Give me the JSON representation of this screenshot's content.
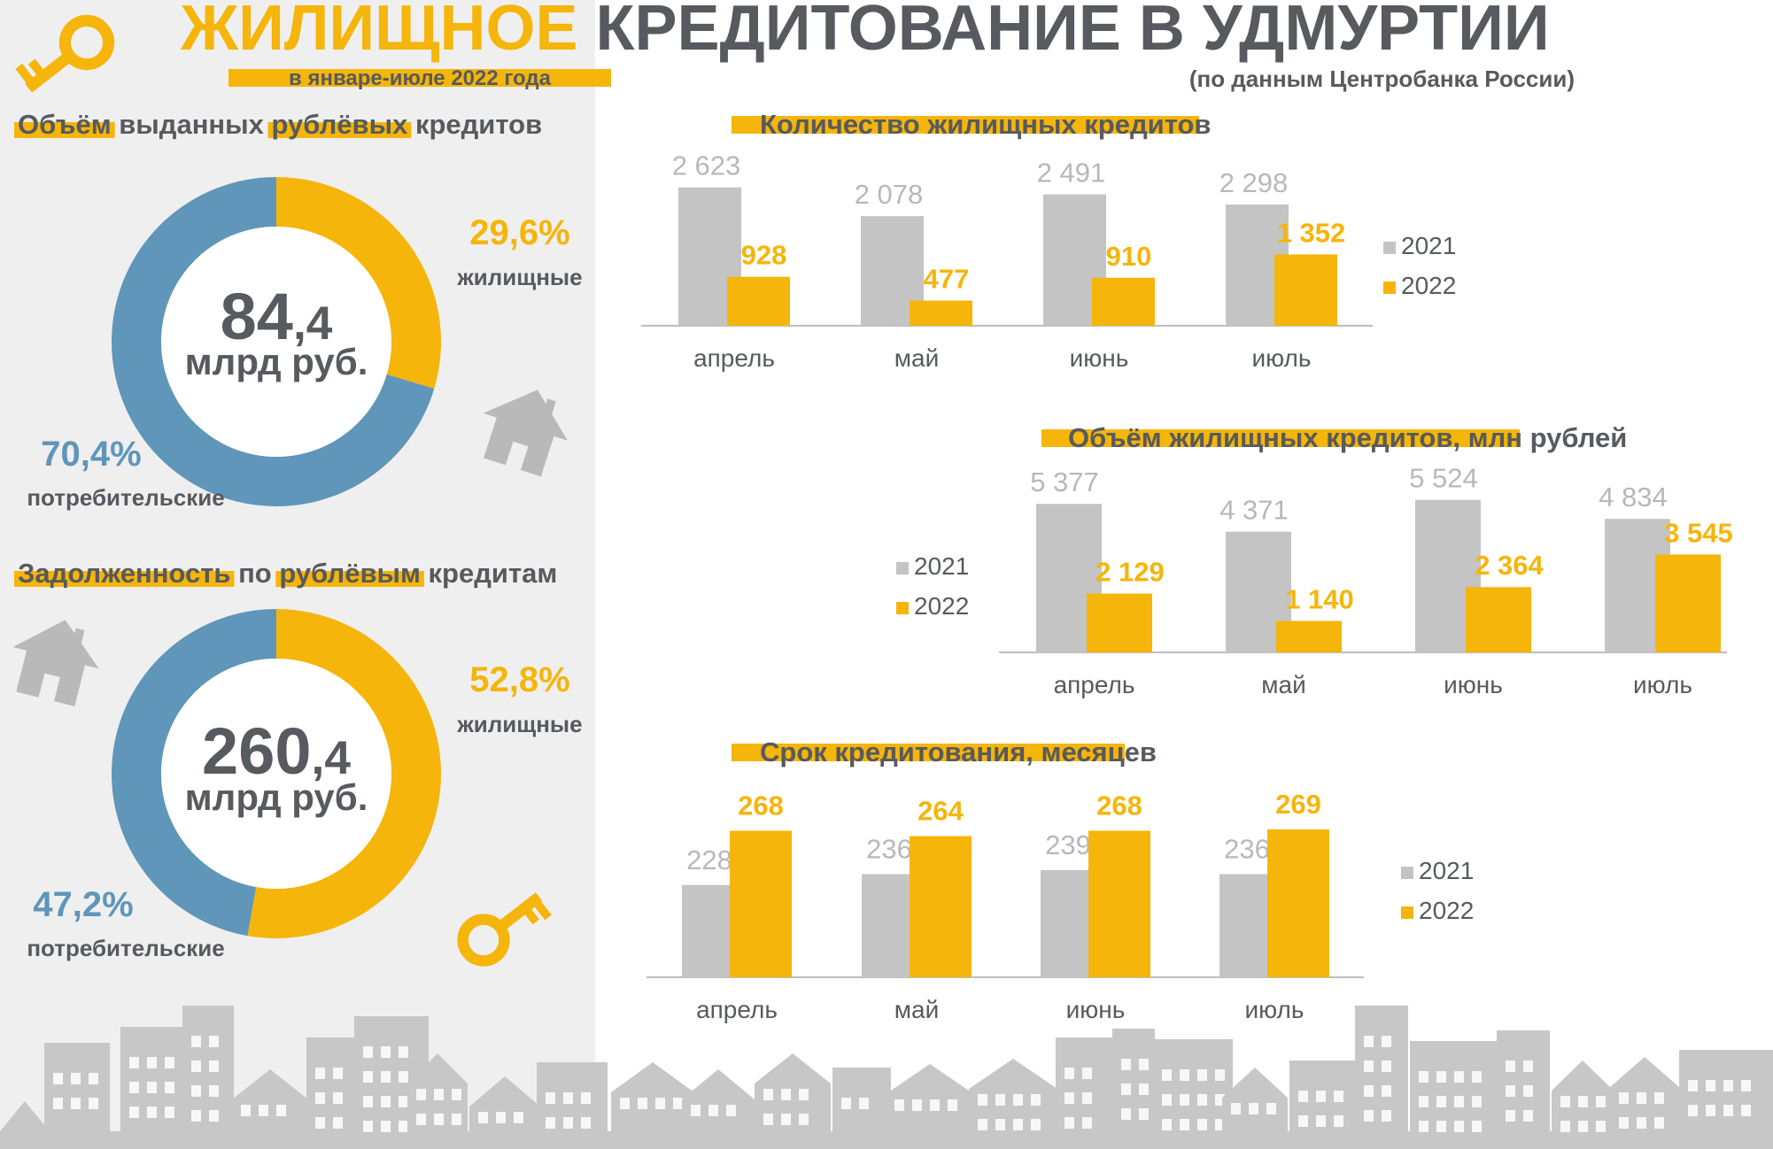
{
  "header": {
    "title_highlight": "ЖИЛИЩНОЕ",
    "title_rest": "КРЕДИТОВАНИЕ В УДМУРТИИ",
    "period": "в январе-июле 2022 года",
    "source": "(по данным Центробанка России)"
  },
  "colors": {
    "accent": "#f5b50a",
    "blue": "#5f96b9",
    "gray_bar": "#c4c4c4",
    "text_dark": "#575a5e",
    "panel": "#efefef",
    "icon_gray": "#b9b9b9",
    "skyline": "#c7c7c7"
  },
  "icons": [
    "key-icon",
    "house-icon",
    "key-icon",
    "house-icon",
    "city-skyline-icon"
  ],
  "volume_section": {
    "heading": [
      {
        "text": "Объём",
        "highlight": true
      },
      {
        "text": "выданных",
        "highlight": false
      },
      {
        "text": "рублёвых",
        "highlight": true
      },
      {
        "text": "кредитов",
        "highlight": false
      }
    ]
  },
  "debt_section": {
    "heading": [
      {
        "text": "Задолженность",
        "highlight": true
      },
      {
        "text": "по",
        "highlight": false
      },
      {
        "text": "рублёвым",
        "highlight": true
      },
      {
        "text": "кредитам",
        "highlight": false
      }
    ]
  },
  "chart_data": [
    {
      "id": "donut_volume",
      "type": "pie",
      "center_int": "84",
      "center_dec": ",4",
      "center_unit": "млрд руб.",
      "slices": [
        {
          "label": "жилищные",
          "pct_label": "29,6%",
          "value": 29.6,
          "color": "#f5b50a"
        },
        {
          "label": "потребительские",
          "pct_label": "70,4%",
          "value": 70.4,
          "color": "#5f96b9"
        }
      ]
    },
    {
      "id": "donut_debt",
      "type": "pie",
      "center_int": "260",
      "center_dec": ",4",
      "center_unit": "млрд руб.",
      "slices": [
        {
          "label": "жилищные",
          "pct_label": "52,8%",
          "value": 52.8,
          "color": "#f5b50a"
        },
        {
          "label": "потребительские",
          "pct_label": "47,2%",
          "value": 47.2,
          "color": "#5f96b9"
        }
      ]
    },
    {
      "id": "bar_count",
      "type": "bar",
      "title": "Количество жилищных кредитов",
      "categories": [
        "апрель",
        "май",
        "июнь",
        "июль"
      ],
      "series": [
        {
          "name": "2021",
          "values": [
            2623,
            2078,
            2491,
            2298
          ],
          "labels": [
            "2 623",
            "2 078",
            "2 491",
            "2 298"
          ],
          "color": "#c4c4c4"
        },
        {
          "name": "2022",
          "values": [
            928,
            477,
            910,
            1352
          ],
          "labels": [
            "928",
            "477",
            "910",
            "1 352"
          ],
          "color": "#f5b50a"
        }
      ],
      "legend": "right"
    },
    {
      "id": "bar_volume",
      "type": "bar",
      "title": "Объём жилищных кредитов, млн рублей",
      "categories": [
        "апрель",
        "май",
        "июнь",
        "июль"
      ],
      "series": [
        {
          "name": "2021",
          "values": [
            5377,
            4371,
            5524,
            4834
          ],
          "labels": [
            "5 377",
            "4 371",
            "5 524",
            "4 834"
          ],
          "color": "#c4c4c4"
        },
        {
          "name": "2022",
          "values": [
            2129,
            1140,
            2364,
            3545
          ],
          "labels": [
            "2 129",
            "1 140",
            "2 364",
            "3 545"
          ],
          "color": "#f5b50a"
        }
      ],
      "legend": "left"
    },
    {
      "id": "bar_term",
      "type": "bar",
      "title": "Срок кредитования, месяцев",
      "categories": [
        "апрель",
        "май",
        "июнь",
        "июль"
      ],
      "series": [
        {
          "name": "2021",
          "values": [
            228,
            236,
            239,
            236
          ],
          "labels": [
            "228",
            "236",
            "239",
            "236"
          ],
          "color": "#c4c4c4"
        },
        {
          "name": "2022",
          "values": [
            268,
            264,
            268,
            269
          ],
          "labels": [
            "268",
            "264",
            "268",
            "269"
          ],
          "color": "#f5b50a"
        }
      ],
      "legend": "right"
    }
  ]
}
